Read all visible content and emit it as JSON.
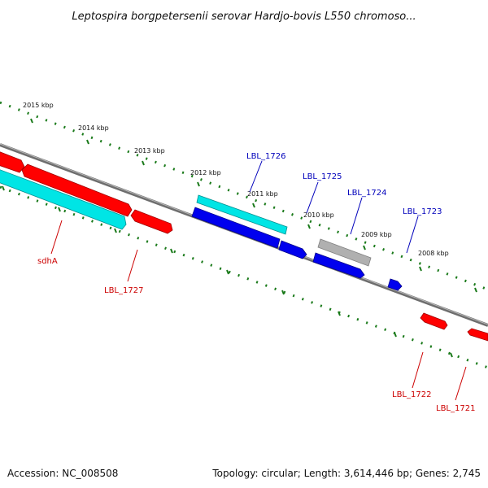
{
  "title": "Leptospira borgpetersenii serovar Hardjo-bovis L550 chromoso...",
  "footer": {
    "accession": "Accession: NC_008508",
    "summary": "Topology: circular; Length: 3,614,446 bp; Genes: 2,745"
  },
  "colors": {
    "backbone": "#808080",
    "tick": "#1a7a1a",
    "label_red": "#cc0000",
    "label_blue": "#0000bb",
    "gene_red": "#ff0000",
    "gene_blue": "#0000ee",
    "gene_cyan": "#00e5e5",
    "gene_gray": "#b0b0b0"
  },
  "scale_labels": [
    "2015 kbp",
    "2014 kbp",
    "2013 kbp",
    "2012 kbp",
    "2011 kbp",
    "2010 kbp",
    "2009 kbp",
    "2008 kbp"
  ],
  "gene_labels": {
    "sdhA": "sdhA",
    "LBL_1727": "LBL_1727",
    "LBL_1726": "LBL_1726",
    "LBL_1725": "LBL_1725",
    "LBL_1724": "LBL_1724",
    "LBL_1723": "LBL_1723",
    "LBL_1722": "LBL_1722",
    "LBL_1721": "LBL_1721"
  }
}
